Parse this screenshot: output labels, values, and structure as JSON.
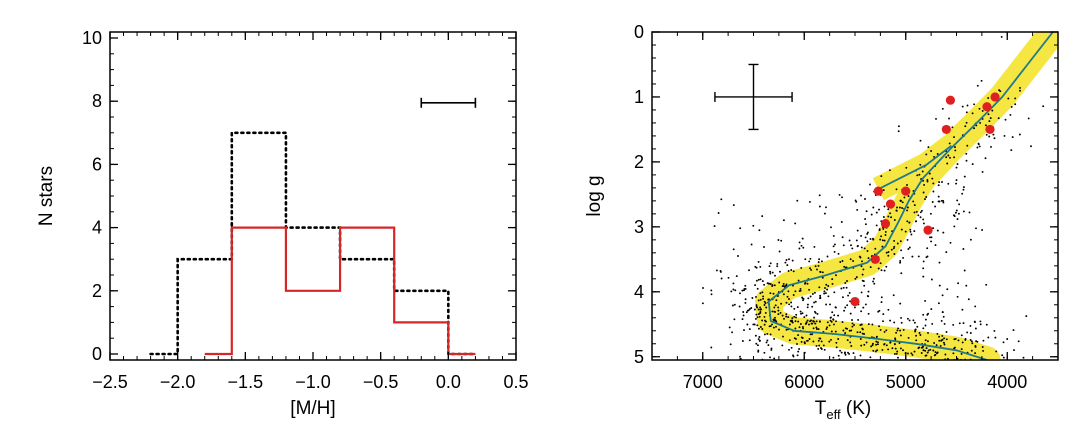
{
  "chart_data": [
    {
      "type": "histogram",
      "xlabel": "[M/H]",
      "ylabel": "N stars",
      "xlim": [
        -2.5,
        0.5
      ],
      "ylim": [
        0,
        10
      ],
      "xticks": [
        "−2.5",
        "−2.0",
        "−1.5",
        "−1.0",
        "−0.5",
        "0.0",
        "0.5"
      ],
      "yticks": [
        "0",
        "2",
        "4",
        "6",
        "8",
        "10"
      ],
      "series": [
        {
          "name": "dotted-black",
          "style": "dotted",
          "color": "#000000",
          "bins": [
            {
              "x0": -2.2,
              "x1": -2.0,
              "count": 0
            },
            {
              "x0": -2.0,
              "x1": -1.6,
              "count": 3
            },
            {
              "x0": -1.6,
              "x1": -1.2,
              "count": 7
            },
            {
              "x0": -1.2,
              "x1": -0.8,
              "count": 4
            },
            {
              "x0": -0.8,
              "x1": -0.4,
              "count": 3
            },
            {
              "x0": -0.4,
              "x1": 0.0,
              "count": 2
            },
            {
              "x0": 0.0,
              "x1": 0.2,
              "count": 0
            }
          ]
        },
        {
          "name": "solid-red",
          "style": "solid",
          "color": "#d62728",
          "bins": [
            {
              "x0": -1.8,
              "x1": -1.6,
              "count": 0
            },
            {
              "x0": -1.6,
              "x1": -1.2,
              "count": 4
            },
            {
              "x0": -1.2,
              "x1": -0.8,
              "count": 2
            },
            {
              "x0": -0.8,
              "x1": -0.4,
              "count": 4
            },
            {
              "x0": -0.4,
              "x1": 0.0,
              "count": 1
            },
            {
              "x0": 0.0,
              "x1": 0.2,
              "count": 0
            }
          ]
        }
      ],
      "error_bar": {
        "x_center": 0.0,
        "half_width": 0.2,
        "y": 7.95
      }
    },
    {
      "type": "scatter",
      "xlabel": "T",
      "xlabel_sub": "eff",
      "xlabel_unit": " (K)",
      "ylabel": "log g",
      "xlim": [
        7500,
        3500
      ],
      "ylim": [
        5.05,
        0
      ],
      "xticks": [
        "7000",
        "6000",
        "5000",
        "4000"
      ],
      "yticks": [
        "0",
        "1",
        "2",
        "3",
        "4",
        "5"
      ],
      "colors": {
        "band": "#f5e642",
        "track": "#1f7a8c",
        "points": "#000000",
        "stars": "#e02020"
      },
      "isochrone": [
        [
          3550,
          0.0
        ],
        [
          3800,
          0.5
        ],
        [
          4050,
          1.0
        ],
        [
          4300,
          1.4
        ],
        [
          4560,
          1.8
        ],
        [
          4830,
          2.25
        ],
        [
          4970,
          2.6
        ],
        [
          5080,
          2.95
        ],
        [
          5200,
          3.3
        ],
        [
          5380,
          3.55
        ],
        [
          5800,
          3.75
        ],
        [
          6150,
          3.9
        ],
        [
          6350,
          4.15
        ],
        [
          6330,
          4.45
        ],
        [
          6100,
          4.6
        ],
        [
          5700,
          4.65
        ],
        [
          5300,
          4.72
        ],
        [
          4900,
          4.8
        ],
        [
          4500,
          4.9
        ],
        [
          4200,
          5.05
        ]
      ],
      "horizontal_branch": [
        [
          5270,
          2.42
        ],
        [
          4800,
          2.05
        ],
        [
          4550,
          1.75
        ]
      ],
      "band_width_logg": 0.42,
      "red_stars": [
        [
          4560,
          1.05
        ],
        [
          4120,
          1.0
        ],
        [
          4200,
          1.15
        ],
        [
          4170,
          1.5
        ],
        [
          4600,
          1.5
        ],
        [
          5270,
          2.45
        ],
        [
          5000,
          2.45
        ],
        [
          5150,
          2.65
        ],
        [
          5200,
          2.95
        ],
        [
          4780,
          3.05
        ],
        [
          5300,
          3.5
        ],
        [
          5500,
          4.15
        ]
      ],
      "scatter_seed": 7,
      "scatter_count": 1100,
      "error_cross": {
        "teff": 6500,
        "teff_err": 380,
        "logg": 1.0,
        "logg_err": 0.5
      }
    }
  ]
}
